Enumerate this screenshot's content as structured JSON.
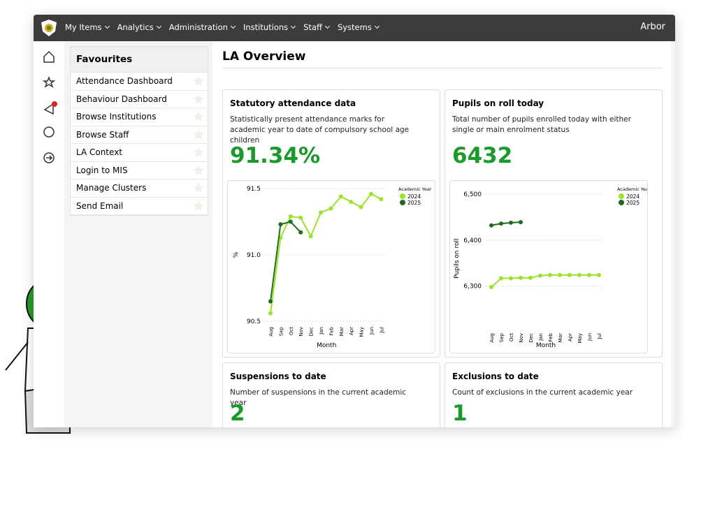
{
  "nav": {
    "items": [
      "My Items",
      "Analytics",
      "Administration",
      "Institutions",
      "Staff",
      "Systems"
    ],
    "brand": "Arbor"
  },
  "favourites": {
    "title": "Favourites",
    "items": [
      "Attendance Dashboard",
      "Behaviour Dashboard",
      "Browse Institutions",
      "Browse Staff",
      "LA Context",
      "Login to MIS",
      "Manage Clusters",
      "Send Email"
    ]
  },
  "main": {
    "title": "LA Overview"
  },
  "cards": [
    {
      "title": "Statutory attendance data",
      "description": "Statistically present attendance marks for academic year to date of compulsory school age children",
      "value": "91.34%"
    },
    {
      "title": "Pupils on roll today",
      "description": "Total number of pupils enrolled today with either single or main enrolment status",
      "value": "6432"
    },
    {
      "title": "Suspensions to date",
      "description": "Number of suspensions in the current academic year",
      "value": "2"
    },
    {
      "title": "Exclusions to date",
      "description": "Count of exclusions in the current academic year",
      "value": "1"
    }
  ],
  "chart_data": [
    {
      "type": "line",
      "x_label": "Month",
      "y_label": "%",
      "legend_title": "Academic Year",
      "categories": [
        "Aug",
        "Sep",
        "Oct",
        "Nov",
        "Dec",
        "Jan",
        "Feb",
        "Mar",
        "Apr",
        "May",
        "Jun",
        "Jul"
      ],
      "series": [
        {
          "name": "2024",
          "color": "#9be22d",
          "values": [
            90.56,
            91.13,
            91.29,
            91.28,
            91.14,
            91.32,
            91.35,
            91.44,
            91.4,
            91.36,
            91.46,
            91.42
          ]
        },
        {
          "name": "2025",
          "color": "#1e6b1e",
          "values": [
            90.65,
            91.23,
            91.25,
            91.17,
            null,
            null,
            null,
            null,
            null,
            null,
            null,
            null
          ]
        }
      ],
      "ylim": [
        90.5,
        91.5
      ],
      "yticks": [
        90.5,
        {
          "value": 91,
          "label": "91.0"
        },
        91.5
      ],
      "grid": true,
      "legend": "upper right"
    },
    {
      "type": "line",
      "x_label": "Month",
      "y_label": "Pupils on roll",
      "legend_title": "Academic Year",
      "categories": [
        "Aug",
        "Sep",
        "Oct",
        "Nov",
        "Dec",
        "Jan",
        "Feb",
        "Mar",
        "Apr",
        "May",
        "Jun",
        "Jul"
      ],
      "series": [
        {
          "name": "2024",
          "color": "#9be22d",
          "values": [
            6298,
            6317,
            6317,
            6318,
            6318,
            6323,
            6324,
            6324,
            6324,
            6324,
            6324,
            6324
          ]
        },
        {
          "name": "2025",
          "color": "#1e6b1e",
          "values": [
            6432,
            6436,
            6438,
            6439,
            null,
            null,
            null,
            null,
            null,
            null,
            null,
            null
          ]
        }
      ],
      "ylim": [
        6210,
        6510
      ],
      "yticks": [
        {
          "value": 6300,
          "label": "6,300"
        },
        {
          "value": 6400,
          "label": "6,400"
        },
        {
          "value": 6500,
          "label": "6,500"
        }
      ],
      "grid": true,
      "legend": "upper right"
    }
  ]
}
